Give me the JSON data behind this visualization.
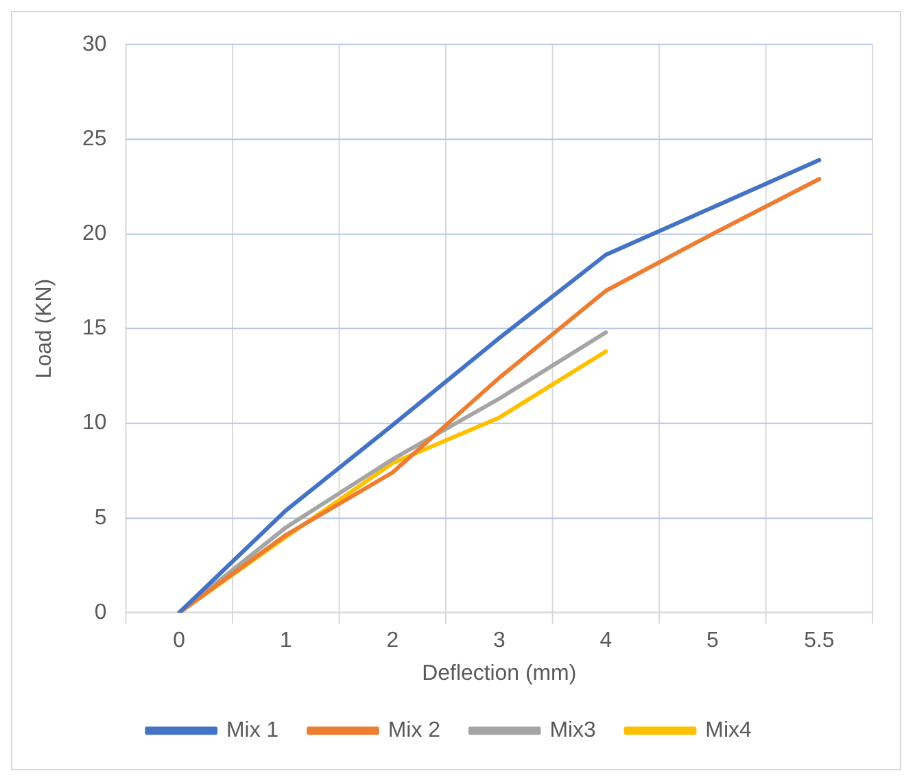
{
  "chart_data": {
    "type": "line",
    "xlabel": "Deflection (mm)",
    "ylabel": "Load (KN)",
    "categories": [
      "0",
      "1",
      "2",
      "3",
      "4",
      "5",
      "5.5"
    ],
    "series": [
      {
        "name": "Mix 1",
        "color": "#4472c4",
        "values": [
          0,
          5.4,
          9.9,
          14.5,
          18.9,
          21.4,
          23.9
        ]
      },
      {
        "name": "Mix 2",
        "color": "#ed7d31",
        "values": [
          0,
          4.1,
          7.4,
          12.4,
          17.0,
          20.0,
          22.9
        ]
      },
      {
        "name": "Mix3",
        "color": "#a5a5a5",
        "values": [
          0,
          4.5,
          8.1,
          11.3,
          14.8,
          null,
          null
        ]
      },
      {
        "name": "Mix4",
        "color": "#ffc000",
        "values": [
          0,
          4.0,
          7.9,
          10.3,
          13.8,
          null,
          null
        ]
      }
    ],
    "ylim": [
      0,
      30
    ],
    "yticks": [
      0,
      5,
      10,
      15,
      20,
      25,
      30
    ],
    "grid": true,
    "legend": "bottom",
    "marker": "none",
    "line_style": "solid"
  }
}
